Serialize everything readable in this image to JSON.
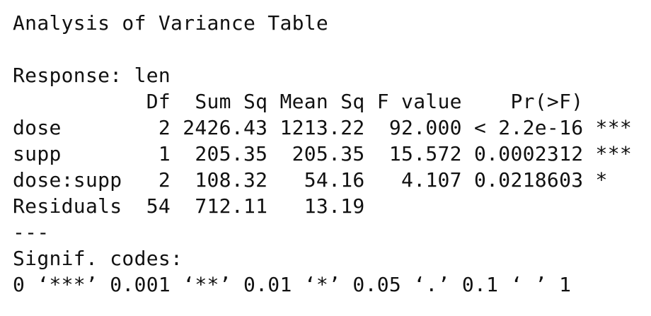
{
  "console": {
    "title": "Analysis of Variance Table",
    "blank": "",
    "response": "Response: len",
    "header": "           Df  Sum Sq Mean Sq F value    Pr(>F)    ",
    "rows": [
      "dose        2 2426.43 1213.22  92.000 < 2.2e-16 ***",
      "supp        1  205.35  205.35  15.572 0.0002312 ***",
      "dose:supp   2  108.32   54.16   4.107 0.0218603 *  ",
      "Residuals  54  712.11   13.19                      "
    ],
    "separator": "---",
    "signif_label": "Signif. codes:",
    "signif_codes": "0 ‘***’ 0.001 ‘**’ 0.01 ‘*’ 0.05 ‘.’ 0.1 ‘ ’ 1"
  }
}
